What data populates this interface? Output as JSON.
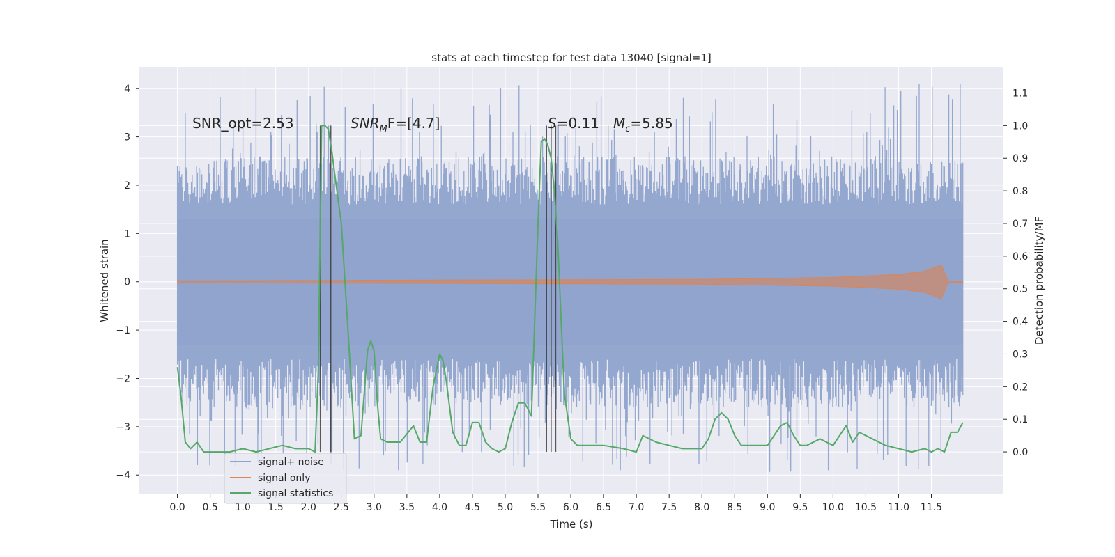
{
  "chart_data": {
    "type": "line",
    "title": "stats at each timestep for test data 13040 [signal=1]",
    "xlabel": "Time (s)",
    "ylabel": "Whitened strain",
    "y2label": "Detection probability/MF",
    "xlim": [
      -0.58,
      12.6
    ],
    "ylim": [
      -4.4,
      4.45
    ],
    "y2lim": [
      -0.13,
      1.18
    ],
    "xticks": [
      0.0,
      0.5,
      1.0,
      1.5,
      2.0,
      2.5,
      3.0,
      3.5,
      4.0,
      4.5,
      5.0,
      5.5,
      6.0,
      6.5,
      7.0,
      7.5,
      8.0,
      8.5,
      9.0,
      9.5,
      10.0,
      10.5,
      11.0,
      11.5
    ],
    "xtick_labels": [
      "0.0",
      "0.5",
      "1.0",
      "1.5",
      "2.0",
      "2.5",
      "3.0",
      "3.5",
      "4.0",
      "4.5",
      "5.0",
      "5.5",
      "6.0",
      "6.5",
      "7.0",
      "7.5",
      "8.0",
      "8.5",
      "9.0",
      "9.5",
      "10.0",
      "10.5",
      "11.0",
      "11.5"
    ],
    "yticks": [
      -4,
      -3,
      -2,
      -1,
      0,
      1,
      2,
      3,
      4
    ],
    "ytick_labels": [
      "−4",
      "−3",
      "−2",
      "−1",
      "0",
      "1",
      "2",
      "3",
      "4"
    ],
    "y2ticks": [
      0.0,
      0.1,
      0.2,
      0.3,
      0.4,
      0.5,
      0.6,
      0.7,
      0.8,
      0.9,
      1.0,
      1.1
    ],
    "y2tick_labels": [
      "0.0",
      "0.1",
      "0.2",
      "0.3",
      "0.4",
      "0.5",
      "0.6",
      "0.7",
      "0.8",
      "0.9",
      "1.0",
      "1.1"
    ],
    "grid": true,
    "legend_position": "lower-left",
    "annotations": {
      "snr_opt": "SNR_opt=2.53",
      "snr_mf_main": "SNR",
      "snr_mf_sub": "M",
      "snr_mf_tail": "F=[4.7]",
      "s_main": "S",
      "s_tail": "=0.11",
      "mc_main": "M",
      "mc_sub": "c",
      "mc_tail": "=5.85"
    },
    "series": [
      {
        "name": "signal+ noise",
        "color": "#8fa3cc",
        "axis": "left",
        "t_range": [
          0.0,
          11.98
        ],
        "envelope": {
          "core_half_width": 1.3,
          "typical_peak": 2.6,
          "max_peak": 4.1,
          "min_trough": -3.95
        }
      },
      {
        "name": "signal only",
        "color": "#dd8452",
        "axis": "left",
        "t_range": [
          0.0,
          11.98
        ],
        "chirp_envelope": [
          [
            0.0,
            0.02
          ],
          [
            8.0,
            0.05
          ],
          [
            10.0,
            0.09
          ],
          [
            11.0,
            0.15
          ],
          [
            11.4,
            0.22
          ],
          [
            11.65,
            0.35
          ],
          [
            11.7,
            0.2
          ],
          [
            11.75,
            0.02
          ],
          [
            11.98,
            0.01
          ]
        ]
      },
      {
        "name": "signal statistics",
        "color": "#55a868",
        "axis": "right",
        "x": [
          0.0,
          0.05,
          0.12,
          0.2,
          0.3,
          0.4,
          0.5,
          0.6,
          0.8,
          1.0,
          1.2,
          1.4,
          1.6,
          1.8,
          2.0,
          2.1,
          2.15,
          2.2,
          2.25,
          2.3,
          2.35,
          2.4,
          2.5,
          2.6,
          2.7,
          2.8,
          2.9,
          2.95,
          3.0,
          3.05,
          3.1,
          3.2,
          3.4,
          3.6,
          3.7,
          3.8,
          3.9,
          4.0,
          4.05,
          4.1,
          4.2,
          4.3,
          4.4,
          4.5,
          4.6,
          4.7,
          4.8,
          4.9,
          5.0,
          5.1,
          5.2,
          5.3,
          5.4,
          5.5,
          5.55,
          5.6,
          5.65,
          5.7,
          5.75,
          5.8,
          5.9,
          6.0,
          6.1,
          6.2,
          6.3,
          6.5,
          6.8,
          7.0,
          7.1,
          7.3,
          7.5,
          7.7,
          8.0,
          8.1,
          8.2,
          8.3,
          8.4,
          8.5,
          8.6,
          8.8,
          9.0,
          9.2,
          9.3,
          9.4,
          9.5,
          9.6,
          9.8,
          10.0,
          10.2,
          10.3,
          10.4,
          10.6,
          10.8,
          11.0,
          11.2,
          11.4,
          11.5,
          11.6,
          11.7,
          11.8,
          11.9,
          11.98
        ],
        "y": [
          0.26,
          0.18,
          0.03,
          0.01,
          0.03,
          0.0,
          0.0,
          0.0,
          0.0,
          0.01,
          0.0,
          0.01,
          0.02,
          0.01,
          0.01,
          0.0,
          0.25,
          1.0,
          1.0,
          0.99,
          0.93,
          0.85,
          0.7,
          0.38,
          0.04,
          0.05,
          0.31,
          0.34,
          0.31,
          0.15,
          0.04,
          0.03,
          0.03,
          0.08,
          0.03,
          0.03,
          0.2,
          0.3,
          0.28,
          0.22,
          0.06,
          0.02,
          0.02,
          0.09,
          0.09,
          0.03,
          0.01,
          0.0,
          0.01,
          0.09,
          0.15,
          0.15,
          0.11,
          0.7,
          0.95,
          0.96,
          0.94,
          0.9,
          0.8,
          0.65,
          0.18,
          0.04,
          0.02,
          0.02,
          0.02,
          0.02,
          0.01,
          0.0,
          0.05,
          0.03,
          0.02,
          0.01,
          0.01,
          0.04,
          0.1,
          0.12,
          0.1,
          0.05,
          0.02,
          0.02,
          0.02,
          0.08,
          0.09,
          0.05,
          0.02,
          0.02,
          0.04,
          0.02,
          0.08,
          0.03,
          0.06,
          0.04,
          0.02,
          0.01,
          0.0,
          0.01,
          0.0,
          0.01,
          0.0,
          0.06,
          0.06,
          0.09
        ]
      }
    ],
    "vlines": {
      "color": "#333333",
      "axis": "right",
      "x": [
        2.18,
        2.34,
        5.63,
        5.7,
        5.77
      ],
      "y_range": [
        0.0,
        1.0
      ]
    }
  }
}
